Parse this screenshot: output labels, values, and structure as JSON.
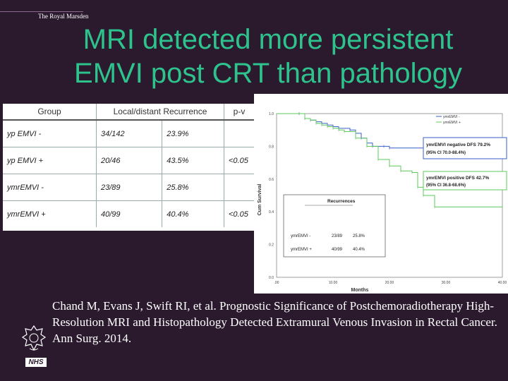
{
  "brand": "The Royal Marsden",
  "title_line1": "MRI detected more persistent",
  "title_line2": "EMVI post CRT than pathology",
  "table": {
    "headers": [
      "Group",
      "Local/distant Recurrence",
      "p-v"
    ],
    "rows": [
      {
        "group": "yp EMVI -",
        "ratio": "34/142",
        "pct": "23.9%",
        "p": ""
      },
      {
        "group": "yp EMVI +",
        "ratio": "20/46",
        "pct": "43.5%",
        "p": "<0.05"
      },
      {
        "group": "ymrEMVI -",
        "ratio": "23/89",
        "pct": "25.8%",
        "p": ""
      },
      {
        "group": "ymrEMVI +",
        "ratio": "40/99",
        "pct": "40.4%",
        "p": "<0.05"
      }
    ]
  },
  "chart_data": {
    "type": "line",
    "title": "",
    "xlabel": "Months",
    "ylabel": "Cum Survival",
    "xlim": [
      0,
      40
    ],
    "ylim": [
      0,
      1.0
    ],
    "x_ticks": [
      ".00",
      "10.00",
      "20.00",
      "30.00",
      "40.00"
    ],
    "y_ticks": [
      "0.0",
      "0.2",
      "0.4",
      "0.6",
      "0.8",
      "1.0"
    ],
    "legend": [
      "ymrEMVI -",
      "ymrEMVI +"
    ],
    "legend_position": "top-right",
    "series": [
      {
        "name": "ymrEMVI -",
        "color": "#3a5fc8",
        "x": [
          0,
          4,
          5,
          6,
          7,
          8,
          9,
          10,
          11,
          13,
          14,
          15,
          16,
          17,
          19,
          20,
          40
        ],
        "y": [
          1.0,
          1.0,
          0.97,
          0.96,
          0.95,
          0.94,
          0.93,
          0.92,
          0.91,
          0.9,
          0.88,
          0.85,
          0.82,
          0.8,
          0.8,
          0.79,
          0.79
        ]
      },
      {
        "name": "ymrEMVI +",
        "color": "#5cc85c",
        "x": [
          0,
          4,
          5,
          6,
          7,
          8,
          9,
          10,
          11,
          12,
          14,
          16,
          18,
          20,
          22,
          24,
          25,
          26,
          28,
          40
        ],
        "y": [
          1.0,
          1.0,
          0.97,
          0.96,
          0.94,
          0.93,
          0.92,
          0.91,
          0.9,
          0.89,
          0.85,
          0.8,
          0.72,
          0.68,
          0.65,
          0.64,
          0.55,
          0.5,
          0.43,
          0.43
        ]
      }
    ],
    "annotations": {
      "neg_title": "ymrEMVI negative DFS 79.2%",
      "neg_ci": "(95% CI 70.0-88.4%)",
      "pos_title": "ymrEMVI positive DFS 42.7%",
      "pos_ci": "(95% CI 36.8-68.6%)",
      "rec_title": "Recurrences",
      "rec_rows": [
        {
          "group": "ymrEMVI -",
          "ratio": "23/89",
          "pct": "25.8%"
        },
        {
          "group": "ymrEMVI +",
          "ratio": "40/99",
          "pct": "40.4%"
        }
      ]
    }
  },
  "citation": "Chand M, Evans J, Swift RI, et al. Prognostic Significance of Postchemoradiotherapy High-Resolution MRI and Histopathology Detected Extramural Venous Invasion in Rectal Cancer. Ann Surg. 2014.",
  "logo": "NHS",
  "crest_icon": "crest-icon"
}
